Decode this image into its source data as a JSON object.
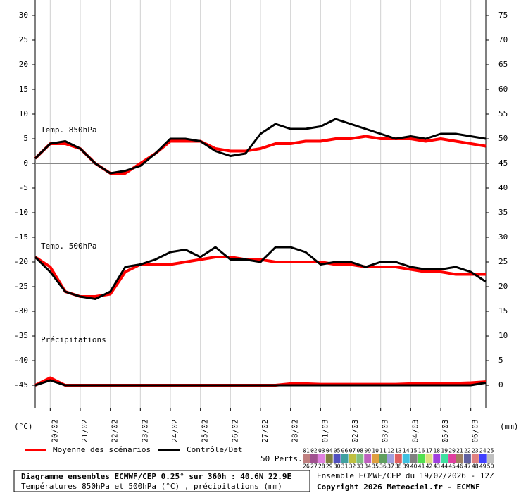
{
  "chart_data": {
    "type": "line",
    "y_label": "(°C)",
    "y2_label": "(mm)",
    "x": [
      0,
      12,
      24,
      36,
      48,
      60,
      72,
      84,
      96,
      108,
      120,
      132,
      144,
      156,
      168,
      180,
      192,
      204,
      216,
      228,
      240,
      252,
      264,
      276,
      288,
      300,
      312,
      324,
      336,
      348,
      360
    ],
    "xlim": [
      0,
      360
    ],
    "xticks": [
      {
        "value": 12,
        "label": "20/02"
      },
      {
        "value": 36,
        "label": "21/02"
      },
      {
        "value": 60,
        "label": "22/02"
      },
      {
        "value": 84,
        "label": "23/02"
      },
      {
        "value": 108,
        "label": "24/02"
      },
      {
        "value": 132,
        "label": "25/02"
      },
      {
        "value": 156,
        "label": "26/02"
      },
      {
        "value": 180,
        "label": "27/02"
      },
      {
        "value": 204,
        "label": "28/02"
      },
      {
        "value": 228,
        "label": "01/03"
      },
      {
        "value": 252,
        "label": "02/03"
      },
      {
        "value": 276,
        "label": "03/03"
      },
      {
        "value": 300,
        "label": "04/03"
      },
      {
        "value": 324,
        "label": "05/03"
      },
      {
        "value": 348,
        "label": "06/03"
      }
    ],
    "ylim": [
      -49.71,
      33.14
    ],
    "yticks": [
      30,
      25,
      20,
      15,
      10,
      5,
      0,
      -5,
      -10,
      -15,
      -20,
      -25,
      -30,
      -35,
      -40,
      -45
    ],
    "y2lim": [
      -4.71,
      78.14
    ],
    "y2ticks": [
      75,
      70,
      65,
      60,
      55,
      50,
      45,
      40,
      35,
      30,
      25,
      20,
      15,
      10,
      5,
      0
    ],
    "grid": true,
    "legend": [
      {
        "label": "Moyenne des scénarios",
        "color": "#ff0000"
      },
      {
        "label": "Contrôle/Det",
        "color": "#000000"
      }
    ],
    "panels": [
      {
        "label": "Temp. 850hPa",
        "axis": "y",
        "mean": [
          1,
          4,
          4,
          3,
          0,
          -2,
          -2,
          0,
          2,
          4.5,
          4.5,
          4.5,
          3,
          2.5,
          2.5,
          3,
          4,
          4,
          4.5,
          4.5,
          5,
          5,
          5.5,
          5,
          5,
          5,
          4.5,
          5,
          4.5,
          4,
          3.5
        ],
        "control": [
          1,
          4,
          4.5,
          3,
          0,
          -2,
          -1.5,
          -0.5,
          2,
          5,
          5,
          4.5,
          2.5,
          1.5,
          2,
          6,
          8,
          7,
          7,
          7.5,
          9,
          8,
          7,
          6,
          5,
          5.5,
          5,
          6,
          6,
          5.5,
          5
        ]
      },
      {
        "label": "Temp. 500hPa",
        "axis": "y",
        "mean": [
          -19,
          -21,
          -26,
          -27,
          -27,
          -26.5,
          -22,
          -20.5,
          -20.5,
          -20.5,
          -20,
          -19.5,
          -19,
          -19,
          -19.5,
          -19.5,
          -20,
          -20,
          -20,
          -20,
          -20.5,
          -20.5,
          -21,
          -21,
          -21,
          -21.5,
          -22,
          -22,
          -22.5,
          -22.5,
          -22.5
        ],
        "control": [
          -19,
          -22,
          -26,
          -27,
          -27.5,
          -26,
          -21,
          -20.5,
          -19.5,
          -18,
          -17.5,
          -19,
          -17,
          -19.5,
          -19.5,
          -20,
          -17,
          -17,
          -18,
          -20.5,
          -20,
          -20,
          -21,
          -20,
          -20,
          -21,
          -21.5,
          -21.5,
          -21,
          -22,
          -24
        ]
      },
      {
        "label": "Précipitations",
        "axis": "y2",
        "mean": [
          0,
          1.5,
          0,
          0,
          0,
          0,
          0,
          0,
          0,
          0,
          0,
          0,
          0,
          0,
          0,
          0,
          0,
          0.3,
          0.3,
          0.2,
          0.2,
          0.2,
          0.2,
          0.2,
          0.2,
          0.3,
          0.3,
          0.3,
          0.4,
          0.5,
          0.7
        ],
        "control": [
          0,
          1,
          0,
          0,
          0,
          0,
          0,
          0,
          0,
          0,
          0,
          0,
          0,
          0,
          0,
          0,
          0,
          0,
          0,
          0,
          0,
          0,
          0,
          0,
          0,
          0,
          0,
          0,
          0,
          0,
          0.5
        ]
      }
    ],
    "perts_label": "50 Perts.",
    "perts": [
      {
        "label": "01",
        "color": "#c08080"
      },
      {
        "label": "02",
        "color": "#a05090"
      },
      {
        "label": "03",
        "color": "#e080e0"
      },
      {
        "label": "04",
        "color": "#808040"
      },
      {
        "label": "05",
        "color": "#5050c0"
      },
      {
        "label": "06",
        "color": "#40a0a0"
      },
      {
        "label": "07",
        "color": "#c0c040"
      },
      {
        "label": "08",
        "color": "#80c080"
      },
      {
        "label": "09",
        "color": "#c060c0"
      },
      {
        "label": "10",
        "color": "#e0a040"
      },
      {
        "label": "11",
        "color": "#60a060"
      },
      {
        "label": "12",
        "color": "#a0a0e0"
      },
      {
        "label": "13",
        "color": "#e06060"
      },
      {
        "label": "14",
        "color": "#40c0e0"
      },
      {
        "label": "15",
        "color": "#808080"
      },
      {
        "label": "16",
        "color": "#50e050"
      },
      {
        "label": "17",
        "color": "#e0e080"
      },
      {
        "label": "18",
        "color": "#a040e0"
      },
      {
        "label": "19",
        "color": "#40e0a0"
      },
      {
        "label": "20",
        "color": "#e040a0"
      },
      {
        "label": "21",
        "color": "#a08060"
      },
      {
        "label": "22",
        "color": "#6060a0"
      },
      {
        "label": "23",
        "color": "#e08080"
      },
      {
        "label": "24",
        "color": "#4040ff"
      },
      {
        "label": "25",
        "color": "#c0c0c0"
      },
      {
        "label": "26",
        "color": "#c08080"
      },
      {
        "label": "27",
        "color": "#a05090"
      },
      {
        "label": "28",
        "color": "#e080e0"
      },
      {
        "label": "29",
        "color": "#808040"
      },
      {
        "label": "30",
        "color": "#5050c0"
      },
      {
        "label": "31",
        "color": "#40a0a0"
      },
      {
        "label": "32",
        "color": "#c0c040"
      },
      {
        "label": "33",
        "color": "#80c080"
      },
      {
        "label": "34",
        "color": "#c060c0"
      },
      {
        "label": "35",
        "color": "#e0a040"
      },
      {
        "label": "36",
        "color": "#60a060"
      },
      {
        "label": "37",
        "color": "#a0a0e0"
      },
      {
        "label": "38",
        "color": "#e06060"
      },
      {
        "label": "39",
        "color": "#40c0e0"
      },
      {
        "label": "40",
        "color": "#808080"
      },
      {
        "label": "41",
        "color": "#50e050"
      },
      {
        "label": "42",
        "color": "#e0e080"
      },
      {
        "label": "43",
        "color": "#a040e0"
      },
      {
        "label": "44",
        "color": "#40e0a0"
      },
      {
        "label": "45",
        "color": "#e040a0"
      },
      {
        "label": "46",
        "color": "#a08060"
      },
      {
        "label": "47",
        "color": "#6060a0"
      },
      {
        "label": "48",
        "color": "#e08080"
      },
      {
        "label": "49",
        "color": "#4040ff"
      },
      {
        "label": "50",
        "color": "#c0c0c0"
      }
    ],
    "title": "Diagramme ensembles ECMWF/CEP 0.25° sur 360h : 40.6N 22.9E",
    "subtitle": "Températures 850hPa et 500hPa (°C) , précipitations (mm)",
    "run_info": "Ensemble ECMWF/CEP du 19/02/2026 - 12Z",
    "copyright": "Copyright 2026 Meteociel.fr - ECMWF"
  }
}
